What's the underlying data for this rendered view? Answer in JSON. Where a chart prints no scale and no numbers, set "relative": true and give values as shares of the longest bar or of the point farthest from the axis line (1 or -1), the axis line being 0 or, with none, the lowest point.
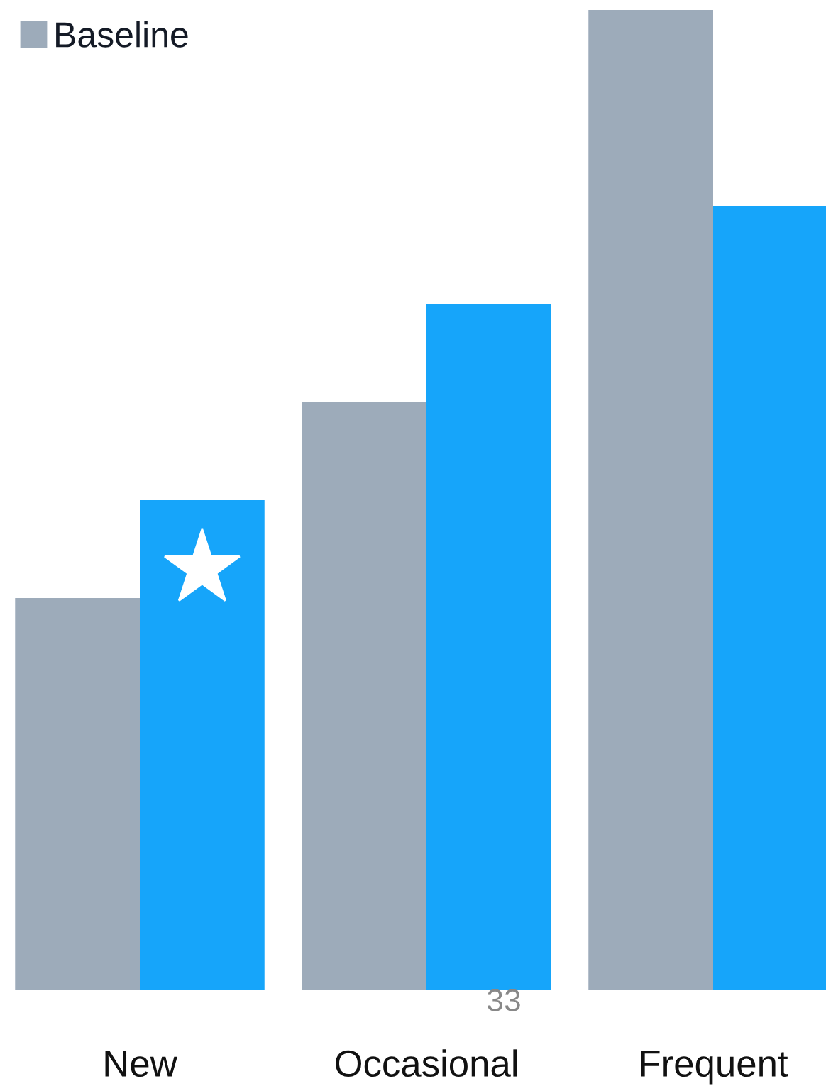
{
  "chart_data": {
    "type": "bar",
    "relative": true,
    "categories": [
      "New",
      "Occasional",
      "Frequent"
    ],
    "series": [
      {
        "name": "Baseline",
        "color": "#9dabba",
        "values": [
          0.4,
          0.6,
          1.0
        ]
      },
      {
        "color": "#16a5fa",
        "values": [
          0.5,
          0.7,
          0.8
        ]
      }
    ],
    "legend": "top left",
    "grid": false,
    "annotations": [
      "33"
    ]
  }
}
